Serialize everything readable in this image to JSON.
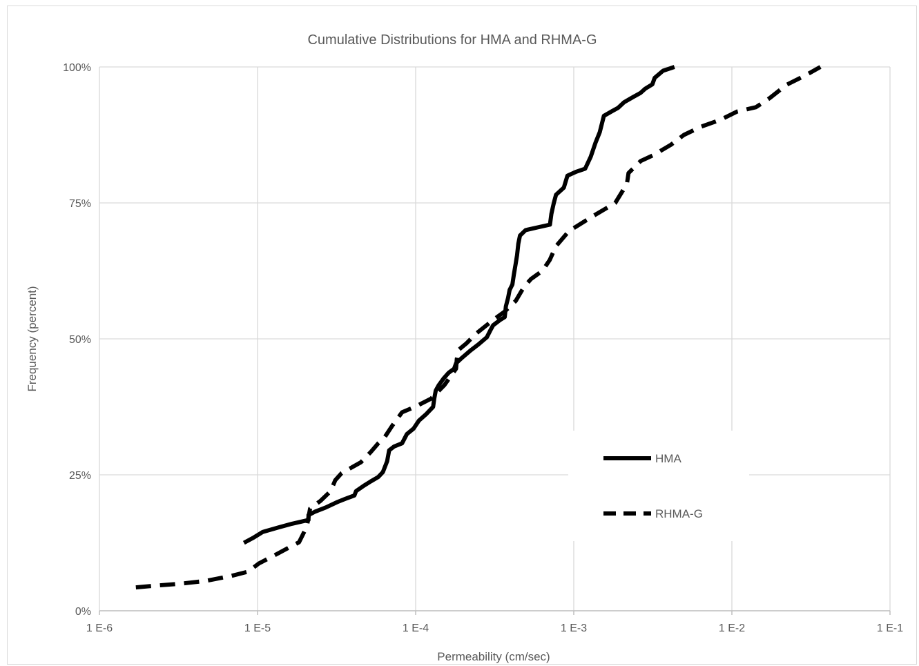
{
  "chart_data": {
    "type": "line",
    "title": "Cumulative Distributions for HMA and RHMA-G",
    "xlabel": "Permeability (cm/sec)",
    "ylabel": "Frequency (percent)",
    "x_scale": "log",
    "xlim": [
      1e-06,
      0.1
    ],
    "ylim": [
      0,
      100
    ],
    "x_ticks": [
      {
        "value": 1e-06,
        "label": "1 E-6"
      },
      {
        "value": 1e-05,
        "label": "1 E-5"
      },
      {
        "value": 0.0001,
        "label": "1 E-4"
      },
      {
        "value": 0.001,
        "label": "1 E-3"
      },
      {
        "value": 0.01,
        "label": "1 E-2"
      },
      {
        "value": 0.1,
        "label": "1 E-1"
      }
    ],
    "y_ticks": [
      {
        "value": 0,
        "label": "0%"
      },
      {
        "value": 25,
        "label": "25%"
      },
      {
        "value": 50,
        "label": "50%"
      },
      {
        "value": 75,
        "label": "75%"
      },
      {
        "value": 100,
        "label": "100%"
      }
    ],
    "grid": true,
    "legend_position": "right",
    "series": [
      {
        "name": "HMA",
        "style": "solid",
        "color": "#000000",
        "points": [
          [
            8.2e-06,
            12.5
          ],
          [
            9.5e-06,
            13.5
          ],
          [
            1.08e-05,
            14.5
          ],
          [
            1.35e-05,
            15.3
          ],
          [
            1.65e-05,
            16.0
          ],
          [
            2.1e-05,
            16.7
          ],
          [
            2.1e-05,
            17.6
          ],
          [
            2.3e-05,
            18.2
          ],
          [
            2.7e-05,
            19.0
          ],
          [
            3.2e-05,
            20.0
          ],
          [
            3.6e-05,
            20.6
          ],
          [
            4.1e-05,
            21.2
          ],
          [
            4.2e-05,
            22.0
          ],
          [
            4.7e-05,
            23.0
          ],
          [
            5.2e-05,
            23.8
          ],
          [
            5.8e-05,
            24.6
          ],
          [
            6.2e-05,
            25.5
          ],
          [
            6.4e-05,
            26.5
          ],
          [
            6.6e-05,
            27.5
          ],
          [
            6.8e-05,
            29.5
          ],
          [
            7.3e-05,
            30.2
          ],
          [
            8.2e-05,
            30.8
          ],
          [
            8.8e-05,
            32.5
          ],
          [
            9.7e-05,
            33.5
          ],
          [
            0.000105,
            35.0
          ],
          [
            0.000117,
            36.2
          ],
          [
            0.000129,
            37.5
          ],
          [
            0.000131,
            39.0
          ],
          [
            0.000134,
            40.5
          ],
          [
            0.00014,
            41.5
          ],
          [
            0.000151,
            42.8
          ],
          [
            0.000162,
            43.8
          ],
          [
            0.000175,
            44.5
          ],
          [
            0.00018,
            45.5
          ],
          [
            0.000196,
            46.5
          ],
          [
            0.000221,
            47.8
          ],
          [
            0.00025,
            49.0
          ],
          [
            0.000282,
            50.3
          ],
          [
            0.000296,
            51.5
          ],
          [
            0.000309,
            52.5
          ],
          [
            0.000343,
            53.5
          ],
          [
            0.000366,
            54.0
          ],
          [
            0.000372,
            56.0
          ],
          [
            0.000384,
            57.5
          ],
          [
            0.000393,
            59.0
          ],
          [
            0.000409,
            60.0
          ],
          [
            0.000418,
            61.8
          ],
          [
            0.000428,
            63.6
          ],
          [
            0.000438,
            65.4
          ],
          [
            0.000446,
            67.5
          ],
          [
            0.000457,
            69.0
          ],
          [
            0.000496,
            70.0
          ],
          [
            0.00059,
            70.5
          ],
          [
            0.000707,
            71.0
          ],
          [
            0.000722,
            73.0
          ],
          [
            0.000748,
            75.0
          ],
          [
            0.000772,
            76.5
          ],
          [
            0.000865,
            77.8
          ],
          [
            0.000912,
            80.0
          ],
          [
            0.00103,
            80.7
          ],
          [
            0.00118,
            81.3
          ],
          [
            0.00128,
            83.5
          ],
          [
            0.00137,
            86.0
          ],
          [
            0.00146,
            88.0
          ],
          [
            0.00155,
            91.0
          ],
          [
            0.00173,
            91.8
          ],
          [
            0.00191,
            92.5
          ],
          [
            0.00208,
            93.5
          ],
          [
            0.00235,
            94.4
          ],
          [
            0.00264,
            95.2
          ],
          [
            0.00283,
            96.0
          ],
          [
            0.00314,
            96.8
          ],
          [
            0.00325,
            98.0
          ],
          [
            0.00367,
            99.3
          ],
          [
            0.00433,
            100.0
          ]
        ]
      },
      {
        "name": "RHMA-G",
        "style": "dashed",
        "color": "#000000",
        "points": [
          [
            1.7e-06,
            4.3
          ],
          [
            2.2e-06,
            4.6
          ],
          [
            3.3e-06,
            5.0
          ],
          [
            4.7e-06,
            5.5
          ],
          [
            6.8e-06,
            6.4
          ],
          [
            8.7e-06,
            7.2
          ],
          [
            1.02e-05,
            8.7
          ],
          [
            1.32e-05,
            10.4
          ],
          [
            1.55e-05,
            11.5
          ],
          [
            1.83e-05,
            12.6
          ],
          [
            2.05e-05,
            15.5
          ],
          [
            2.15e-05,
            18.8
          ],
          [
            2.5e-05,
            20.2
          ],
          [
            2.9e-05,
            22.0
          ],
          [
            3.1e-05,
            24.0
          ],
          [
            3.4e-05,
            25.3
          ],
          [
            4.5e-05,
            27.3
          ],
          [
            5.2e-05,
            29.2
          ],
          [
            5.8e-05,
            30.8
          ],
          [
            6.4e-05,
            32.0
          ],
          [
            7.1e-05,
            34.0
          ],
          [
            8.2e-05,
            36.5
          ],
          [
            9.9e-05,
            37.5
          ],
          [
            0.000125,
            39.0
          ],
          [
            0.000152,
            41.5
          ],
          [
            0.00018,
            44.5
          ],
          [
            0.000182,
            46.3
          ],
          [
            0.000187,
            48.0
          ],
          [
            0.00021,
            49.2
          ],
          [
            0.000242,
            51.0
          ],
          [
            0.00031,
            53.5
          ],
          [
            0.000365,
            55.0
          ],
          [
            0.00043,
            57.0
          ],
          [
            0.000483,
            59.5
          ],
          [
            0.000536,
            61.0
          ],
          [
            0.000633,
            62.5
          ],
          [
            0.000705,
            64.5
          ],
          [
            0.00077,
            67.0
          ],
          [
            0.00093,
            69.8
          ],
          [
            0.00131,
            72.5
          ],
          [
            0.00183,
            75.0
          ],
          [
            0.00217,
            78.5
          ],
          [
            0.00222,
            80.5
          ],
          [
            0.00265,
            82.7
          ],
          [
            0.00319,
            83.8
          ],
          [
            0.00412,
            85.7
          ],
          [
            0.00497,
            87.5
          ],
          [
            0.00637,
            89.0
          ],
          [
            0.00849,
            90.3
          ],
          [
            0.0108,
            91.8
          ],
          [
            0.0142,
            92.6
          ],
          [
            0.0174,
            94.3
          ],
          [
            0.0221,
            96.7
          ],
          [
            0.0294,
            98.5
          ],
          [
            0.0363,
            100.0
          ]
        ]
      }
    ]
  }
}
